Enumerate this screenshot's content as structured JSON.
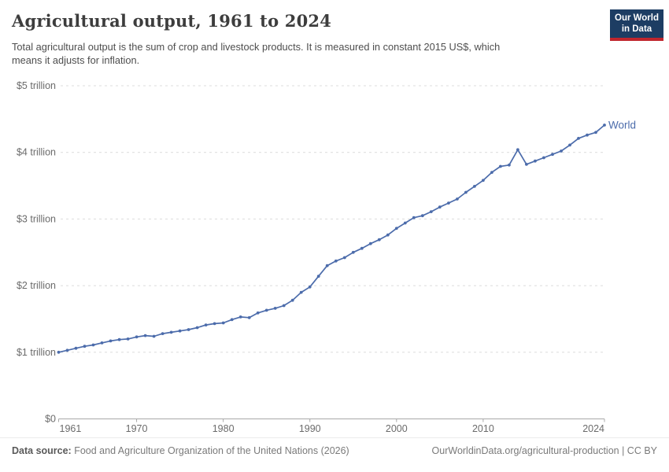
{
  "header": {
    "title": "Agricultural output, 1961 to 2024",
    "subtitle": "Total agricultural output is the sum of crop and livestock products. It is measured in constant 2015 US$, which\nmeans it adjusts for inflation.",
    "logo": {
      "line1": "Our World",
      "line2": "in Data"
    }
  },
  "chart_data": {
    "type": "line",
    "title": "Agricultural output, 1961 to 2024",
    "xlabel": "",
    "ylabel": "",
    "unit": "constant 2015 US$ (trillions)",
    "xlim": [
      1961,
      2024
    ],
    "ylim": [
      0,
      5
    ],
    "grid": "horizontal-dashed",
    "legend_position": "end-of-line",
    "x_ticks": [
      1961,
      1970,
      1980,
      1990,
      2000,
      2010,
      2024
    ],
    "y_ticks": [
      {
        "value": 0,
        "label": "$0"
      },
      {
        "value": 1,
        "label": "$1 trillion"
      },
      {
        "value": 2,
        "label": "$2 trillion"
      },
      {
        "value": 3,
        "label": "$3 trillion"
      },
      {
        "value": 4,
        "label": "$4 trillion"
      },
      {
        "value": 5,
        "label": "$5 trillion"
      }
    ],
    "series": [
      {
        "name": "World",
        "color": "#4c6cab",
        "x": [
          1961,
          1962,
          1963,
          1964,
          1965,
          1966,
          1967,
          1968,
          1969,
          1970,
          1971,
          1972,
          1973,
          1974,
          1975,
          1976,
          1977,
          1978,
          1979,
          1980,
          1981,
          1982,
          1983,
          1984,
          1985,
          1986,
          1987,
          1988,
          1989,
          1990,
          1991,
          1992,
          1993,
          1994,
          1995,
          1996,
          1997,
          1998,
          1999,
          2000,
          2001,
          2002,
          2003,
          2004,
          2005,
          2006,
          2007,
          2008,
          2009,
          2010,
          2011,
          2012,
          2013,
          2014,
          2015,
          2016,
          2017,
          2018,
          2019,
          2020,
          2021,
          2022,
          2023,
          2024
        ],
        "values": [
          1.0,
          1.03,
          1.06,
          1.09,
          1.11,
          1.14,
          1.17,
          1.19,
          1.2,
          1.23,
          1.25,
          1.24,
          1.28,
          1.3,
          1.32,
          1.34,
          1.37,
          1.41,
          1.43,
          1.44,
          1.49,
          1.53,
          1.52,
          1.59,
          1.63,
          1.66,
          1.7,
          1.78,
          1.9,
          1.98,
          2.14,
          2.3,
          2.37,
          2.42,
          2.5,
          2.56,
          2.63,
          2.69,
          2.76,
          2.86,
          2.94,
          3.02,
          3.05,
          3.11,
          3.18,
          3.24,
          3.3,
          3.4,
          3.49,
          3.58,
          3.7,
          3.79,
          3.81,
          4.04,
          3.82,
          3.87,
          3.92,
          3.97,
          4.02,
          4.11,
          4.21,
          4.26,
          4.3,
          4.41
        ]
      }
    ]
  },
  "footer": {
    "datasource_label": "Data source:",
    "datasource_text": " Food and Agriculture Organization of the United Nations (2026)",
    "link_text": "OurWorldinData.org/agricultural-production | CC BY"
  },
  "colors": {
    "line": "#4c6cab",
    "gridline": "#dcdcdc",
    "axis": "#a8a8a8",
    "tick_label": "#6b6b6b",
    "logo_bg": "#1d3d63",
    "logo_red": "#c0262d"
  }
}
